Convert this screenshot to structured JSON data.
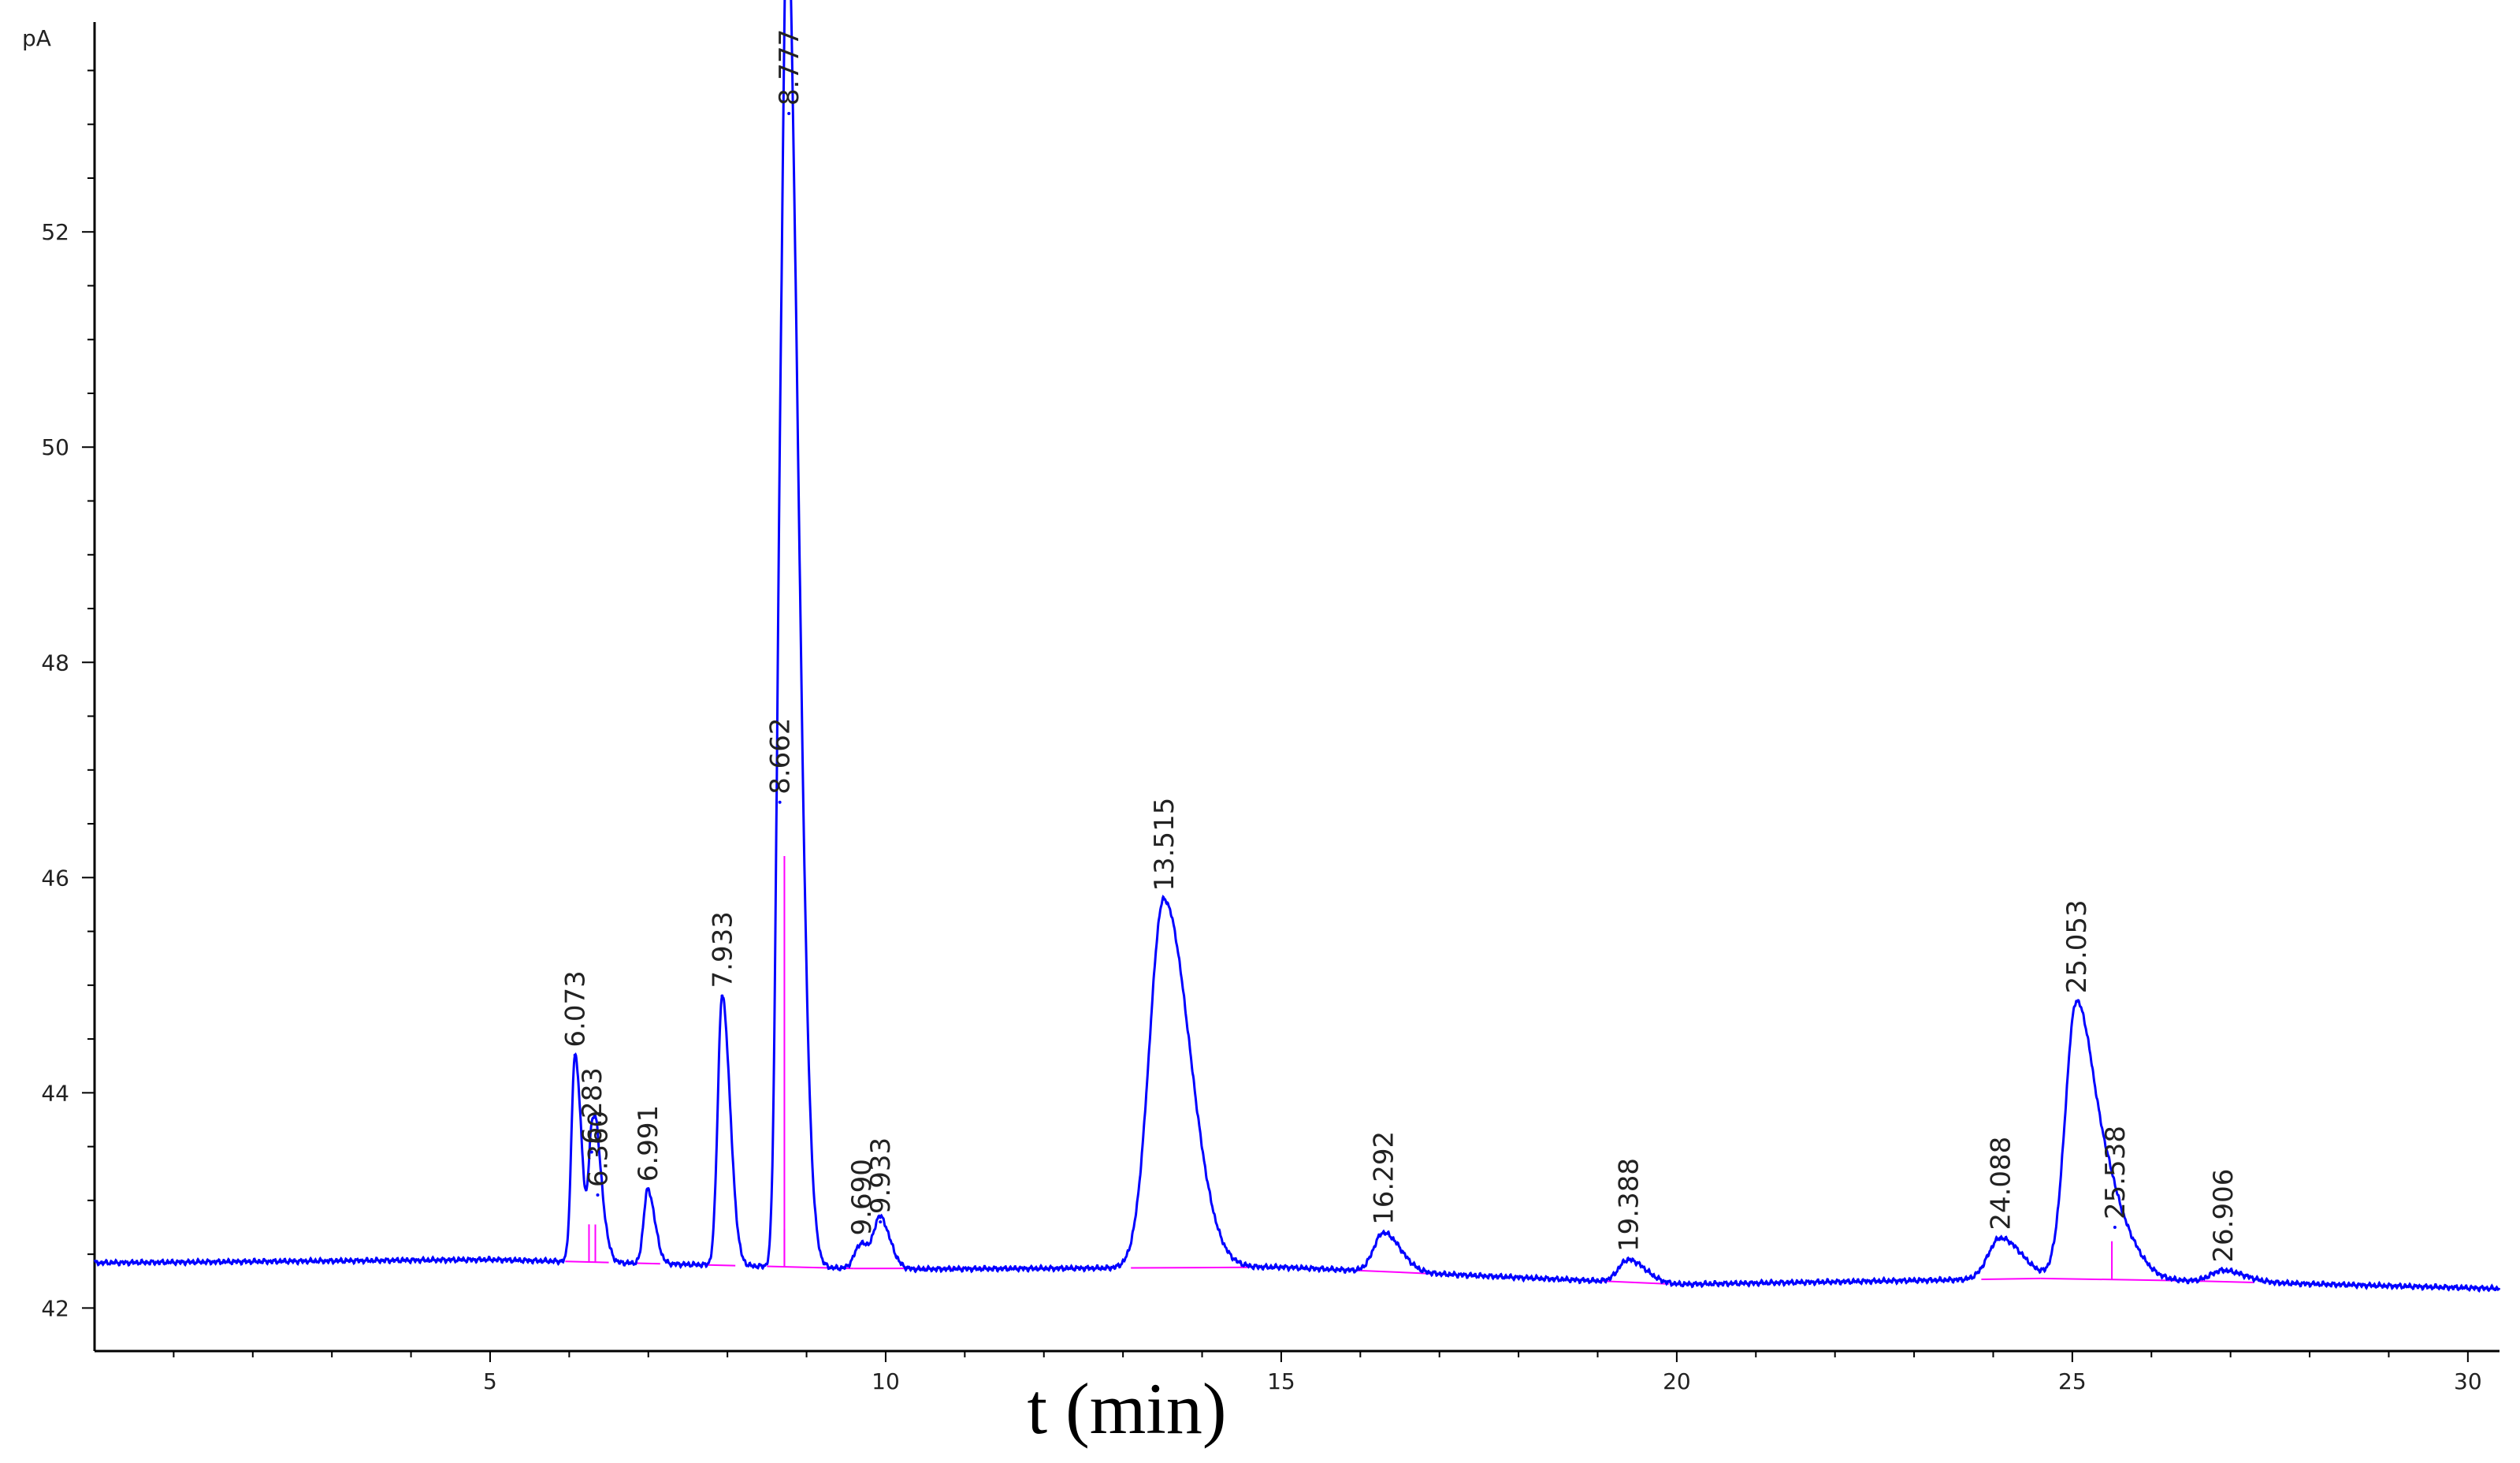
{
  "chart_data": {
    "type": "line",
    "title": "",
    "xlabel": "t (min)",
    "ylabel": "",
    "y_unit": "pA",
    "xlim": [
      0,
      30.4
    ],
    "ylim": [
      41.6,
      53.95
    ],
    "x_ticks": [
      5,
      10,
      15,
      20,
      25,
      30
    ],
    "y_ticks": [
      42,
      44,
      46,
      48,
      50,
      52
    ],
    "grid": false,
    "legend": "none",
    "colors": {
      "signal": "#0000ff",
      "baseline": "#ff00ff",
      "axis": "#000000"
    },
    "baseline_points": [
      {
        "x": 0,
        "y": 42.42
      },
      {
        "x": 5.0,
        "y": 42.45
      },
      {
        "x": 10.0,
        "y": 42.36
      },
      {
        "x": 15.0,
        "y": 42.38
      },
      {
        "x": 20.0,
        "y": 42.22
      },
      {
        "x": 25.0,
        "y": 42.28
      },
      {
        "x": 30.4,
        "y": 42.18
      }
    ],
    "peaks": [
      {
        "label": "6.073",
        "x": 6.073,
        "y": 44.35,
        "w": 0.045
      },
      {
        "label": "6.283",
        "x": 6.283,
        "y": 43.45,
        "w": 0.04
      },
      {
        "label": "6.360",
        "x": 6.36,
        "y": 43.05,
        "w": 0.05
      },
      {
        "label": "6.991",
        "x": 6.991,
        "y": 43.1,
        "w": 0.05
      },
      {
        "label": "7.933",
        "x": 7.933,
        "y": 44.9,
        "w": 0.055
      },
      {
        "label": "8.662",
        "x": 8.662,
        "y": 46.7,
        "w": 0.05
      },
      {
        "label": "8.777",
        "x": 8.777,
        "y": 53.1,
        "w": 0.075
      },
      {
        "label": "9.690",
        "x": 9.69,
        "y": 42.6,
        "w": 0.08
      },
      {
        "label": "9.933",
        "x": 9.933,
        "y": 42.8,
        "w": 0.07
      },
      {
        "label": "13.515",
        "x": 13.515,
        "y": 45.8,
        "w": 0.18
      },
      {
        "label": "16.292",
        "x": 16.292,
        "y": 42.7,
        "w": 0.12
      },
      {
        "label": "19.388",
        "x": 19.388,
        "y": 42.45,
        "w": 0.12
      },
      {
        "label": "24.088",
        "x": 24.088,
        "y": 42.65,
        "w": 0.15
      },
      {
        "label": "25.053",
        "x": 25.053,
        "y": 44.85,
        "w": 0.14
      },
      {
        "label": "25.538",
        "x": 25.538,
        "y": 42.75,
        "w": 0.15
      },
      {
        "label": "26.906",
        "x": 26.906,
        "y": 42.35,
        "w": 0.15
      }
    ]
  }
}
